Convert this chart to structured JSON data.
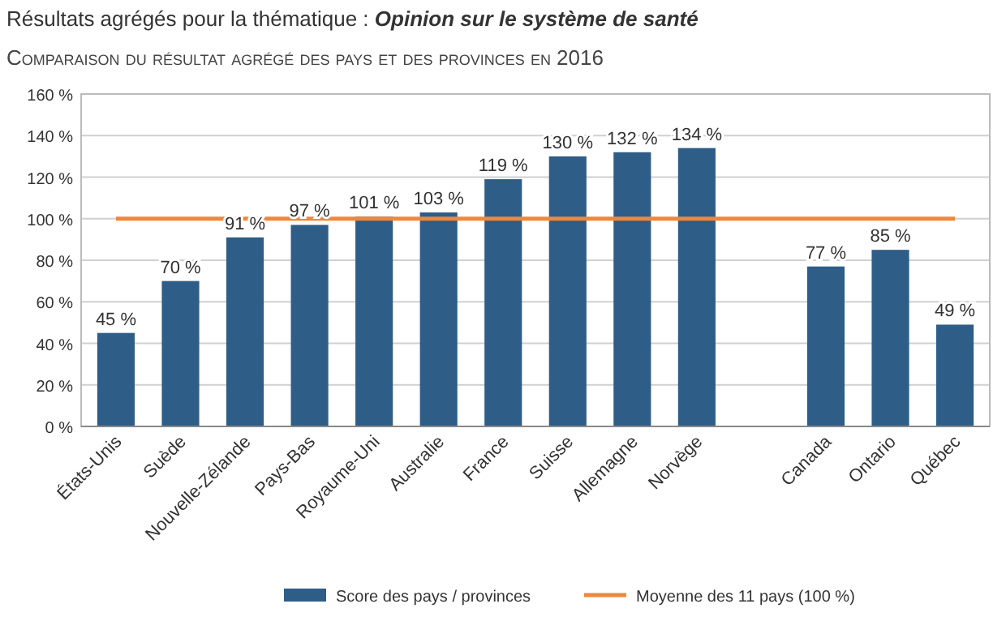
{
  "chart_data": {
    "type": "bar",
    "title": "Résultats agrégés pour la thématique : Opinion sur le système de santé",
    "subtitle": "Comparaison du résultat agrégé des pays et des provinces en 2016",
    "categories": [
      "États-Unis",
      "Suède",
      "Nouvelle-Zélande",
      "Pays-Bas",
      "Royaume-Uni",
      "Australie",
      "France",
      "Suisse",
      "Allemagne",
      "Norvège",
      null,
      "Canada",
      "Ontario",
      "Québec"
    ],
    "series": [
      {
        "name": "Score des pays / provinces",
        "color": "#2e5d87",
        "values": [
          45,
          70,
          91,
          97,
          101,
          103,
          119,
          130,
          132,
          134,
          null,
          77,
          85,
          49
        ],
        "value_labels": [
          "45 %",
          "70 %",
          "91 %",
          "97 %",
          "101 %",
          "103 %",
          "119 %",
          "130 %",
          "132 %",
          "134 %",
          null,
          "77 %",
          "85 %",
          "49 %"
        ]
      },
      {
        "type": "line",
        "name": "Moyenne des 11 pays (100 %)",
        "color": "#f0873a",
        "values": [
          100,
          100,
          100,
          100,
          100,
          100,
          100,
          100,
          100,
          100,
          100,
          100,
          100,
          100
        ]
      }
    ],
    "ylim": [
      0,
      160
    ],
    "yticks": [
      {
        "value": 0,
        "label": "0 %"
      },
      {
        "value": 20,
        "label": "20 %"
      },
      {
        "value": 40,
        "label": "40 %"
      },
      {
        "value": 60,
        "label": "60 %"
      },
      {
        "value": 80,
        "label": "80 %"
      },
      {
        "value": 100,
        "label": "100 %"
      },
      {
        "value": 120,
        "label": "120 %"
      },
      {
        "value": 140,
        "label": "140 %"
      },
      {
        "value": 160,
        "label": "160 %"
      }
    ],
    "grid": "y",
    "legend": "bottom",
    "marker": "none"
  }
}
